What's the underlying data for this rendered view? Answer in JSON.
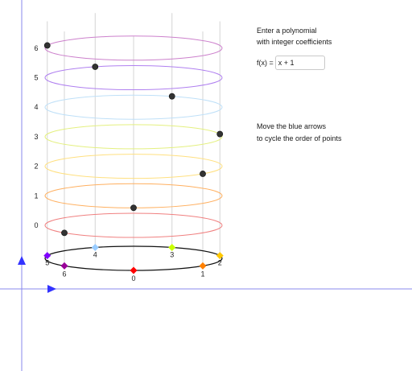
{
  "instructions": {
    "line1": "Enter a polynomial",
    "line2": "with integer coefficients",
    "function_label": "f(x) =",
    "function_value": "x + 1",
    "move_line1": "Move the blue arrows",
    "move_line2": "to cycle the order of points"
  },
  "y_axis_labels": [
    "0",
    "1",
    "2",
    "3",
    "4",
    "5",
    "6"
  ],
  "base_points": [
    {
      "label": "0",
      "color": "#ff0000"
    },
    {
      "label": "1",
      "color": "#ff8000"
    },
    {
      "label": "2",
      "color": "#ffc800"
    },
    {
      "label": "3",
      "color": "#c8ff00"
    },
    {
      "label": "4",
      "color": "#99ccff"
    },
    {
      "label": "5",
      "color": "#8000ff"
    },
    {
      "label": "6",
      "color": "#990099"
    }
  ],
  "ring_colors": [
    "#f08080",
    "#ffb060",
    "#ffe080",
    "#e4f080",
    "#bfe0f8",
    "#b080f0",
    "#cc80cc"
  ],
  "plotted_points": [
    {
      "x": 0,
      "fx": 1
    },
    {
      "x": 1,
      "fx": 2
    },
    {
      "x": 2,
      "fx": 3
    },
    {
      "x": 3,
      "fx": 4
    },
    {
      "x": 4,
      "fx": 5
    },
    {
      "x": 5,
      "fx": 6
    },
    {
      "x": 6,
      "fx": 0
    }
  ],
  "arrow_color": "#3333ff",
  "point_color": "#333333"
}
